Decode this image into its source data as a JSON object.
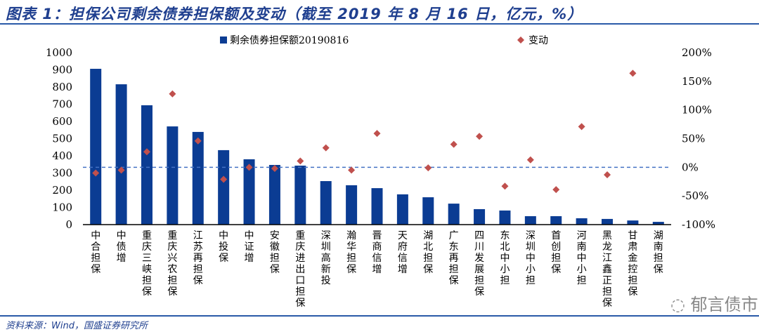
{
  "title": "图表 1：担保公司剩余债券担保额及变动（截至 2019 年 8 月 16 日，亿元，%）",
  "source": "资料来源：Wind，国盛证券研究所",
  "watermark": "郁言债市",
  "chart_data": {
    "type": "bar+scatter",
    "categories": [
      "中合担保",
      "中债增",
      "重庆三峡担保",
      "重庆兴农担保",
      "江苏再担保",
      "中投保",
      "中证增",
      "安徽担保",
      "重庆进出口担保",
      "深圳高新投",
      "瀚华担保",
      "晋商信增",
      "天府信增",
      "湖北担保",
      "广东再担保",
      "四川发展担保",
      "东北中小担",
      "深圳中小担",
      "首创担保",
      "河南中小担",
      "黑龙江鑫正担保",
      "甘肃金控担保",
      "湖南担保"
    ],
    "series": [
      {
        "name": "剩余债券担保额20190816",
        "type": "bar",
        "axis": "left",
        "color": "#0b3c93",
        "values": [
          906,
          816,
          694,
          571,
          539,
          433,
          380,
          347,
          343,
          253,
          229,
          212,
          176,
          159,
          122,
          90,
          82,
          49,
          49,
          37,
          33,
          24,
          16
        ]
      },
      {
        "name": "变动",
        "type": "scatter",
        "axis": "right",
        "color": "#c0504d",
        "values": [
          -10,
          -5,
          27,
          128,
          46,
          -21,
          0,
          -2,
          11,
          34,
          -5,
          59,
          null,
          -1,
          40,
          54,
          -33,
          13,
          -39,
          71,
          -13,
          164,
          null
        ]
      }
    ],
    "left_axis": {
      "min": 0,
      "max": 1000,
      "ticks": [
        0,
        100,
        200,
        300,
        400,
        500,
        600,
        700,
        800,
        900,
        1000
      ]
    },
    "right_axis": {
      "min": -100,
      "max": 200,
      "ticks": [
        "-100%",
        "-50%",
        "0%",
        "50%",
        "100%",
        "150%",
        "200%"
      ]
    },
    "zero_line": {
      "style": "dashed",
      "color": "#4472c4"
    },
    "legend": "top"
  }
}
